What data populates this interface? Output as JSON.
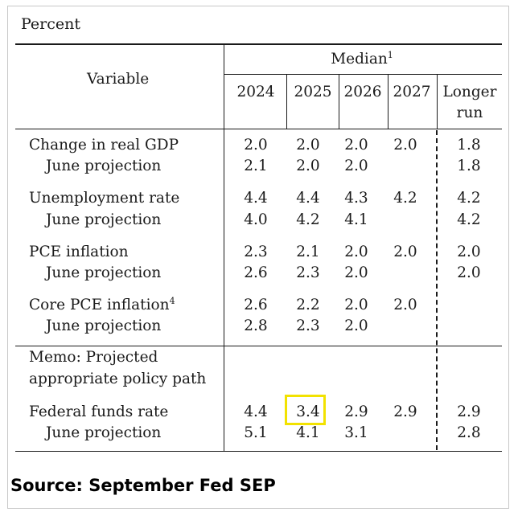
{
  "unit_label": "Percent",
  "header": {
    "variable_label": "Variable",
    "median_label": "Median",
    "median_footnote": "1",
    "years": [
      "2024",
      "2025",
      "2026",
      "2027"
    ],
    "longer_run_line1": "Longer",
    "longer_run_line2": "run"
  },
  "rows": {
    "gdp": {
      "label": "Change in real GDP",
      "values": [
        "2.0",
        "2.0",
        "2.0",
        "2.0",
        "1.8"
      ]
    },
    "gdp_june": {
      "label": "June projection",
      "values": [
        "2.1",
        "2.0",
        "2.0",
        "",
        "1.8"
      ]
    },
    "unemp": {
      "label": "Unemployment rate",
      "values": [
        "4.4",
        "4.4",
        "4.3",
        "4.2",
        "4.2"
      ]
    },
    "unemp_june": {
      "label": "June projection",
      "values": [
        "4.0",
        "4.2",
        "4.1",
        "",
        "4.2"
      ]
    },
    "pce": {
      "label": "PCE inflation",
      "values": [
        "2.3",
        "2.1",
        "2.0",
        "2.0",
        "2.0"
      ]
    },
    "pce_june": {
      "label": "June projection",
      "values": [
        "2.6",
        "2.3",
        "2.0",
        "",
        "2.0"
      ]
    },
    "core": {
      "label": "Core PCE inflation",
      "footnote": "4",
      "values": [
        "2.6",
        "2.2",
        "2.0",
        "2.0",
        ""
      ]
    },
    "core_june": {
      "label": "June projection",
      "values": [
        "2.8",
        "2.3",
        "2.0",
        "",
        ""
      ]
    },
    "memo_line1": "Memo: Projected",
    "memo_line2": "appropriate policy path",
    "ffr": {
      "label": "Federal funds rate",
      "values": [
        "4.4",
        "3.4",
        "2.9",
        "2.9",
        "2.9"
      ]
    },
    "ffr_june": {
      "label": "June projection",
      "values": [
        "5.1",
        "4.1",
        "3.1",
        "",
        "2.8"
      ]
    }
  },
  "highlighted_cell": "Federal funds rate 2025",
  "highlight_color": "#f2e200",
  "source": "Source: September Fed SEP"
}
